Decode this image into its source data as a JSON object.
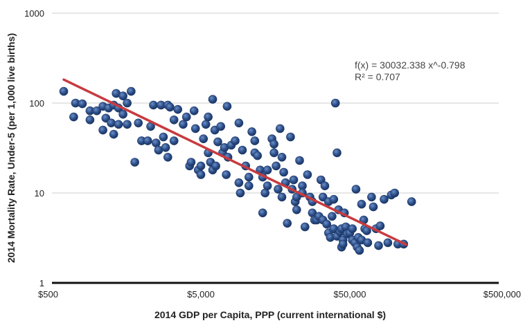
{
  "chart_data": {
    "type": "scatter",
    "xlabel": "2014 GDP per Capita, PPP (current international $)",
    "ylabel": "2014 Mortality Rate, Under-5 (per 1,000 live births)",
    "x_scale": "log",
    "y_scale": "log",
    "xlim": [
      500,
      500000
    ],
    "ylim": [
      1,
      1000
    ],
    "x_ticks": [
      {
        "value": 500,
        "label": "$500"
      },
      {
        "value": 5000,
        "label": "$5,000"
      },
      {
        "value": 50000,
        "label": "$50,000"
      },
      {
        "value": 500000,
        "label": "$500,000"
      }
    ],
    "y_ticks": [
      {
        "value": 1,
        "label": "1"
      },
      {
        "value": 10,
        "label": "10"
      },
      {
        "value": 100,
        "label": "100"
      },
      {
        "value": 1000,
        "label": "1000"
      }
    ],
    "grid": "horizontal",
    "marker_color": "#2d4f8a",
    "trendline": {
      "label": "f(x) = 30032.338 x^-0.798",
      "r2_label": "R² = 0.707",
      "coefficient": 30032.338,
      "exponent": -0.798,
      "x_range": [
        600,
        120000
      ],
      "color": "#c83a3f"
    },
    "points": [
      [
        600,
        135
      ],
      [
        700,
        70
      ],
      [
        720,
        100
      ],
      [
        800,
        98
      ],
      [
        900,
        82
      ],
      [
        900,
        65
      ],
      [
        1000,
        82
      ],
      [
        1100,
        50
      ],
      [
        1100,
        92
      ],
      [
        1150,
        68
      ],
      [
        1200,
        88
      ],
      [
        1250,
        60
      ],
      [
        1300,
        45
      ],
      [
        1300,
        95
      ],
      [
        1350,
        128
      ],
      [
        1400,
        58
      ],
      [
        1400,
        88
      ],
      [
        1500,
        120
      ],
      [
        1500,
        75
      ],
      [
        1600,
        100
      ],
      [
        1700,
        135
      ],
      [
        1600,
        58
      ],
      [
        1800,
        22
      ],
      [
        1900,
        60
      ],
      [
        2000,
        38
      ],
      [
        2200,
        38
      ],
      [
        2300,
        55
      ],
      [
        2400,
        95
      ],
      [
        2500,
        36
      ],
      [
        2600,
        30
      ],
      [
        2700,
        95
      ],
      [
        2800,
        42
      ],
      [
        2900,
        32
      ],
      [
        3000,
        95
      ],
      [
        3000,
        25
      ],
      [
        3100,
        90
      ],
      [
        3300,
        65
      ],
      [
        3500,
        85
      ],
      [
        3300,
        38
      ],
      [
        3800,
        58
      ],
      [
        4000,
        70
      ],
      [
        4200,
        20
      ],
      [
        4300,
        22
      ],
      [
        4500,
        82
      ],
      [
        4600,
        52
      ],
      [
        4800,
        18
      ],
      [
        5000,
        20
      ],
      [
        5000,
        16
      ],
      [
        5200,
        40
      ],
      [
        5400,
        58
      ],
      [
        5600,
        70
      ],
      [
        5600,
        28
      ],
      [
        5800,
        22
      ],
      [
        6000,
        110
      ],
      [
        6000,
        18
      ],
      [
        6200,
        50
      ],
      [
        6300,
        20
      ],
      [
        6500,
        37
      ],
      [
        6800,
        55
      ],
      [
        7000,
        28
      ],
      [
        7200,
        32
      ],
      [
        7500,
        92
      ],
      [
        7400,
        16
      ],
      [
        7600,
        25
      ],
      [
        8000,
        34
      ],
      [
        8500,
        38
      ],
      [
        9000,
        60
      ],
      [
        9000,
        13
      ],
      [
        9500,
        30
      ],
      [
        9200,
        10
      ],
      [
        10000,
        20
      ],
      [
        10500,
        15
      ],
      [
        10500,
        12
      ],
      [
        11000,
        48
      ],
      [
        11500,
        38
      ],
      [
        11500,
        28
      ],
      [
        12000,
        26
      ],
      [
        12500,
        18
      ],
      [
        13000,
        6
      ],
      [
        13000,
        15
      ],
      [
        13500,
        10
      ],
      [
        14000,
        18
      ],
      [
        14000,
        12
      ],
      [
        15000,
        40
      ],
      [
        15500,
        35
      ],
      [
        15500,
        28
      ],
      [
        16000,
        20
      ],
      [
        16500,
        11
      ],
      [
        17000,
        52
      ],
      [
        17500,
        9
      ],
      [
        17500,
        25
      ],
      [
        18000,
        17
      ],
      [
        18500,
        13
      ],
      [
        19000,
        4.6
      ],
      [
        20000,
        42
      ],
      [
        20500,
        11
      ],
      [
        21000,
        14
      ],
      [
        21500,
        8
      ],
      [
        22000,
        9
      ],
      [
        22000,
        6.5
      ],
      [
        23000,
        23
      ],
      [
        24000,
        12
      ],
      [
        24000,
        10
      ],
      [
        25000,
        4.2
      ],
      [
        26000,
        16
      ],
      [
        27000,
        9
      ],
      [
        28000,
        8
      ],
      [
        28000,
        6
      ],
      [
        29000,
        5
      ],
      [
        30000,
        5
      ],
      [
        31000,
        5.5
      ],
      [
        32000,
        14
      ],
      [
        33000,
        9
      ],
      [
        33000,
        5
      ],
      [
        34000,
        12
      ],
      [
        35000,
        4.5
      ],
      [
        36000,
        8
      ],
      [
        36000,
        3.6
      ],
      [
        37000,
        3.2
      ],
      [
        38000,
        5.5
      ],
      [
        39000,
        8.5
      ],
      [
        39000,
        4
      ],
      [
        40000,
        100
      ],
      [
        41000,
        28
      ],
      [
        41000,
        3.3
      ],
      [
        42000,
        6.5
      ],
      [
        43000,
        3.7
      ],
      [
        44000,
        2.5
      ],
      [
        44000,
        4
      ],
      [
        45000,
        3
      ],
      [
        45000,
        2.7
      ],
      [
        46000,
        6
      ],
      [
        47000,
        4.2
      ],
      [
        48000,
        3.5
      ],
      [
        50000,
        3.6
      ],
      [
        52000,
        4
      ],
      [
        52000,
        3
      ],
      [
        54000,
        2.8
      ],
      [
        55000,
        11
      ],
      [
        56000,
        2.5
      ],
      [
        57000,
        3.2
      ],
      [
        58000,
        2.3
      ],
      [
        60000,
        7.5
      ],
      [
        60000,
        3
      ],
      [
        62000,
        5
      ],
      [
        63000,
        4
      ],
      [
        65000,
        3.8
      ],
      [
        66000,
        2.8
      ],
      [
        70000,
        9
      ],
      [
        72000,
        7
      ],
      [
        75000,
        4
      ],
      [
        78000,
        2.6
      ],
      [
        80000,
        4.3
      ],
      [
        85000,
        8.5
      ],
      [
        90000,
        2.8
      ],
      [
        95000,
        9.5
      ],
      [
        100000,
        10
      ],
      [
        105000,
        2.7
      ],
      [
        115000,
        2.7
      ],
      [
        130000,
        8
      ]
    ]
  }
}
